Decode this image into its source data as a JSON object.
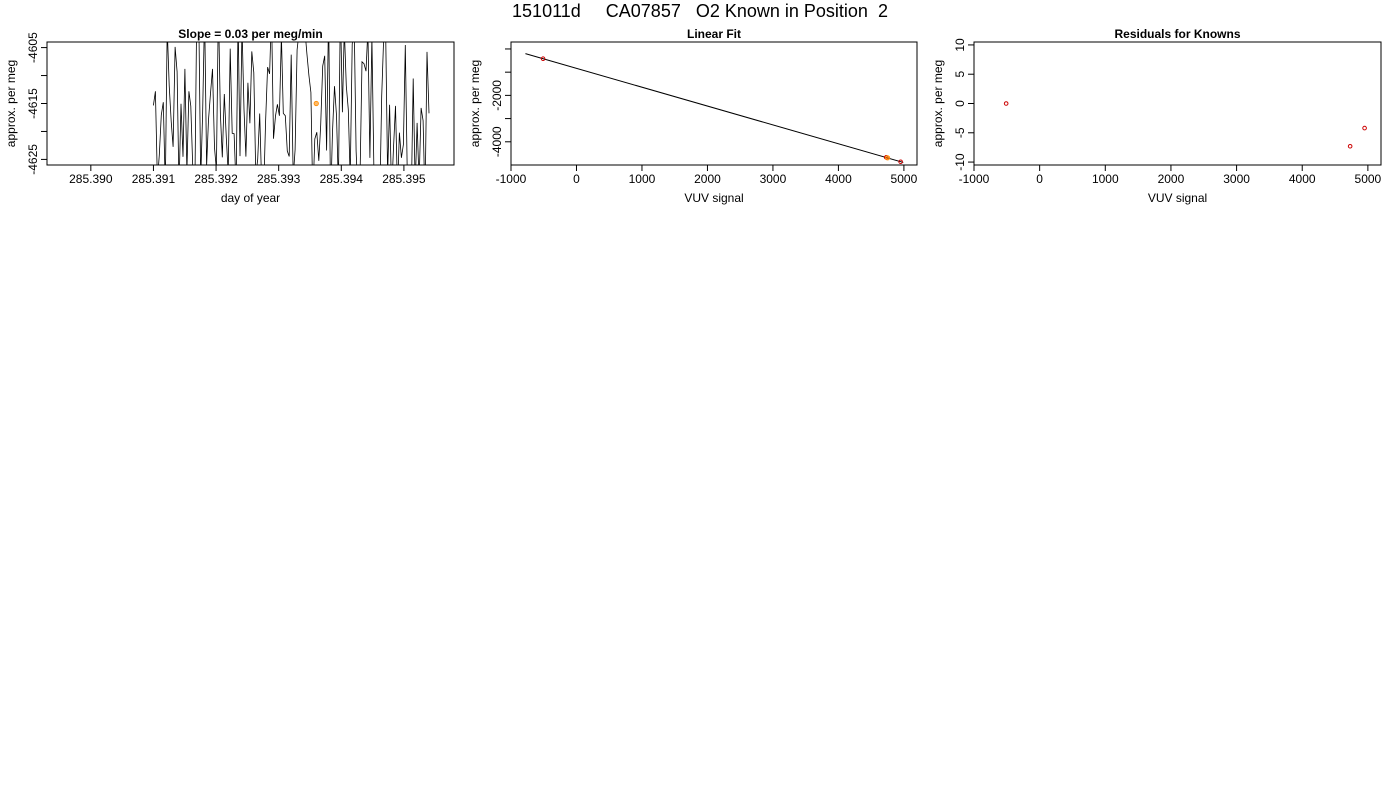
{
  "figure": {
    "title": "151011d     CA07857   O2 Known in Position  2"
  },
  "chart_data": [
    {
      "type": "line",
      "title": "Slope =  0.03  per meg/min",
      "xlabel": "day of year",
      "ylabel": "approx. per meg",
      "xlim": [
        285.3893,
        285.3958
      ],
      "ylim": [
        -4626,
        -4604
      ],
      "x_ticks": [
        "285.390",
        "285.391",
        "285.392",
        "285.393",
        "285.394",
        "285.395"
      ],
      "y_ticks": [
        "-4605",
        "-4615",
        "-4625"
      ],
      "y_ticks_minor": [
        -4610,
        -4620
      ],
      "trace_range": [
        285.391,
        285.3954
      ],
      "highlight_point": {
        "x": 285.3936,
        "y": -4615,
        "color": "#ff8c00"
      },
      "line_color": "#000000"
    },
    {
      "type": "scatter",
      "title": "Linear Fit",
      "xlabel": "VUV signal",
      "ylabel": "approx. per meg",
      "xlim": [
        -1000,
        5200
      ],
      "ylim": [
        -5000,
        300
      ],
      "x_ticks": [
        "-1000",
        "0",
        "1000",
        "2000",
        "3000",
        "4000",
        "5000"
      ],
      "y_ticks": [
        "-2000",
        "-4000"
      ],
      "y_ticks_minor": [
        0,
        -1000,
        -3000
      ],
      "points": [
        {
          "x": -510,
          "y": -420,
          "color": "#cc0000"
        },
        {
          "x": 4730,
          "y": -4670,
          "color": "#cc0000"
        },
        {
          "x": 4950,
          "y": -4860,
          "color": "#cc0000"
        }
      ],
      "highlight_point": {
        "x": 4750,
        "y": -4690,
        "color": "#ff8c00"
      },
      "fit_line": {
        "x": [
          -780,
          4990
        ],
        "y": [
          -200,
          -4890
        ],
        "color": "#000000"
      }
    },
    {
      "type": "scatter",
      "title": "Residuals for Knowns",
      "xlabel": "VUV signal",
      "ylabel": "approx. per meg",
      "xlim": [
        -1000,
        5200
      ],
      "ylim": [
        -10.5,
        10.5
      ],
      "x_ticks": [
        "-1000",
        "0",
        "1000",
        "2000",
        "3000",
        "4000",
        "5000"
      ],
      "y_ticks": [
        "10",
        "5",
        "0",
        "-5",
        "-10"
      ],
      "points": [
        {
          "x": -510,
          "y": 0.0,
          "color": "#cc0000"
        },
        {
          "x": 4730,
          "y": -7.3,
          "color": "#cc0000"
        },
        {
          "x": 4950,
          "y": -4.2,
          "color": "#cc0000"
        }
      ]
    }
  ]
}
